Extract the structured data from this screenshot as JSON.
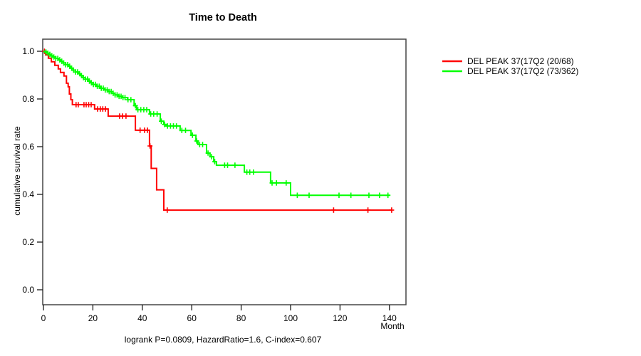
{
  "chart_data": {
    "type": "line",
    "subtype": "kaplan-meier-step",
    "title": "Time to Death",
    "xlabel": "Month",
    "ylabel": "cumulative survival rate",
    "footer": "logrank P=0.0809, HazardRatio=1.6, C-index=0.607",
    "xlim": [
      0,
      146
    ],
    "ylim": [
      0.0,
      1.0
    ],
    "x_ticks": [
      0,
      20,
      40,
      60,
      80,
      100,
      120,
      140
    ],
    "y_ticks": [
      "0.0",
      "0.2",
      "0.4",
      "0.6",
      "0.8",
      "1.0"
    ],
    "grid": false,
    "legend_position": "outside-top-right",
    "axis_color": "#454545",
    "series": [
      {
        "name": "DEL PEAK 37(17Q2 (20/68)",
        "color": "#ff0000",
        "end_month": 140.9,
        "steps": [
          [
            0,
            1.0
          ],
          [
            0.9,
            0.985
          ],
          [
            2,
            0.971
          ],
          [
            3.2,
            0.956
          ],
          [
            4.6,
            0.941
          ],
          [
            6,
            0.926
          ],
          [
            6.9,
            0.911
          ],
          [
            8.3,
            0.896
          ],
          [
            9.3,
            0.866
          ],
          [
            10,
            0.851
          ],
          [
            10.5,
            0.821
          ],
          [
            11.1,
            0.797
          ],
          [
            11.7,
            0.776
          ],
          [
            20.7,
            0.758
          ],
          [
            26.2,
            0.728
          ],
          [
            37.2,
            0.669
          ],
          [
            42.9,
            0.603
          ],
          [
            43.6,
            0.509
          ],
          [
            45.8,
            0.419
          ],
          [
            48.7,
            0.334
          ]
        ],
        "censor_months": [
          0.4,
          13.2,
          14.1,
          16.4,
          17.3,
          18.3,
          19.3,
          21.9,
          23,
          24,
          25.1,
          30.8,
          32,
          33.4,
          39.1,
          40.9,
          42.1,
          43.1,
          50.1,
          117.4,
          131.3,
          140.9
        ]
      },
      {
        "name": "DEL PEAK 37(17Q2 (73/362)",
        "color": "#00ff00",
        "end_month": 140.3,
        "steps": [
          [
            0,
            1.0
          ],
          [
            0.8,
            0.997
          ],
          [
            1.6,
            0.992
          ],
          [
            2.4,
            0.987
          ],
          [
            3.2,
            0.981
          ],
          [
            4,
            0.976
          ],
          [
            5,
            0.97
          ],
          [
            6,
            0.964
          ],
          [
            7,
            0.958
          ],
          [
            8,
            0.951
          ],
          [
            9,
            0.944
          ],
          [
            10,
            0.937
          ],
          [
            11,
            0.929
          ],
          [
            12,
            0.921
          ],
          [
            13,
            0.913
          ],
          [
            14,
            0.906
          ],
          [
            15,
            0.898
          ],
          [
            16,
            0.89
          ],
          [
            17,
            0.883
          ],
          [
            18,
            0.875
          ],
          [
            19,
            0.868
          ],
          [
            20,
            0.861
          ],
          [
            21.5,
            0.853
          ],
          [
            23,
            0.845
          ],
          [
            24.5,
            0.838
          ],
          [
            26,
            0.831
          ],
          [
            27.5,
            0.824
          ],
          [
            29,
            0.817
          ],
          [
            30.5,
            0.811
          ],
          [
            32,
            0.806
          ],
          [
            34,
            0.797
          ],
          [
            36.7,
            0.772
          ],
          [
            37.7,
            0.755
          ],
          [
            42.9,
            0.737
          ],
          [
            47.3,
            0.707
          ],
          [
            48.7,
            0.693
          ],
          [
            49.6,
            0.687
          ],
          [
            55.3,
            0.668
          ],
          [
            59.7,
            0.648
          ],
          [
            61.7,
            0.624
          ],
          [
            62.5,
            0.609
          ],
          [
            66,
            0.573
          ],
          [
            67.4,
            0.558
          ],
          [
            68.9,
            0.537
          ],
          [
            70,
            0.522
          ],
          [
            81.3,
            0.493
          ],
          [
            91.9,
            0.448
          ],
          [
            100,
            0.396
          ]
        ],
        "censor_months": [
          1,
          1.8,
          2.6,
          3.4,
          4.2,
          5,
          5.8,
          6.6,
          7.4,
          8.2,
          9,
          9.8,
          10.6,
          11.4,
          12.2,
          13,
          13.8,
          14.6,
          15.4,
          16.2,
          17,
          17.8,
          18.6,
          19.4,
          20.2,
          21,
          21.8,
          22.6,
          23.4,
          24.2,
          25,
          25.8,
          26.6,
          27.4,
          28.2,
          29,
          29.8,
          30.6,
          31.4,
          32.2,
          33,
          34.2,
          35.4,
          37.2,
          38.2,
          39.4,
          40.6,
          41.8,
          43.4,
          44.6,
          46,
          47.7,
          49,
          50.2,
          51.4,
          52.6,
          53.8,
          56,
          57.5,
          60.3,
          62,
          63.2,
          64.4,
          66.6,
          68,
          69.3,
          73.3,
          74.5,
          77.5,
          82.3,
          83.5,
          85,
          92.5,
          94.3,
          98.2,
          102.7,
          107.5,
          119.6,
          124.4,
          131.7,
          136,
          139.4
        ]
      }
    ]
  }
}
